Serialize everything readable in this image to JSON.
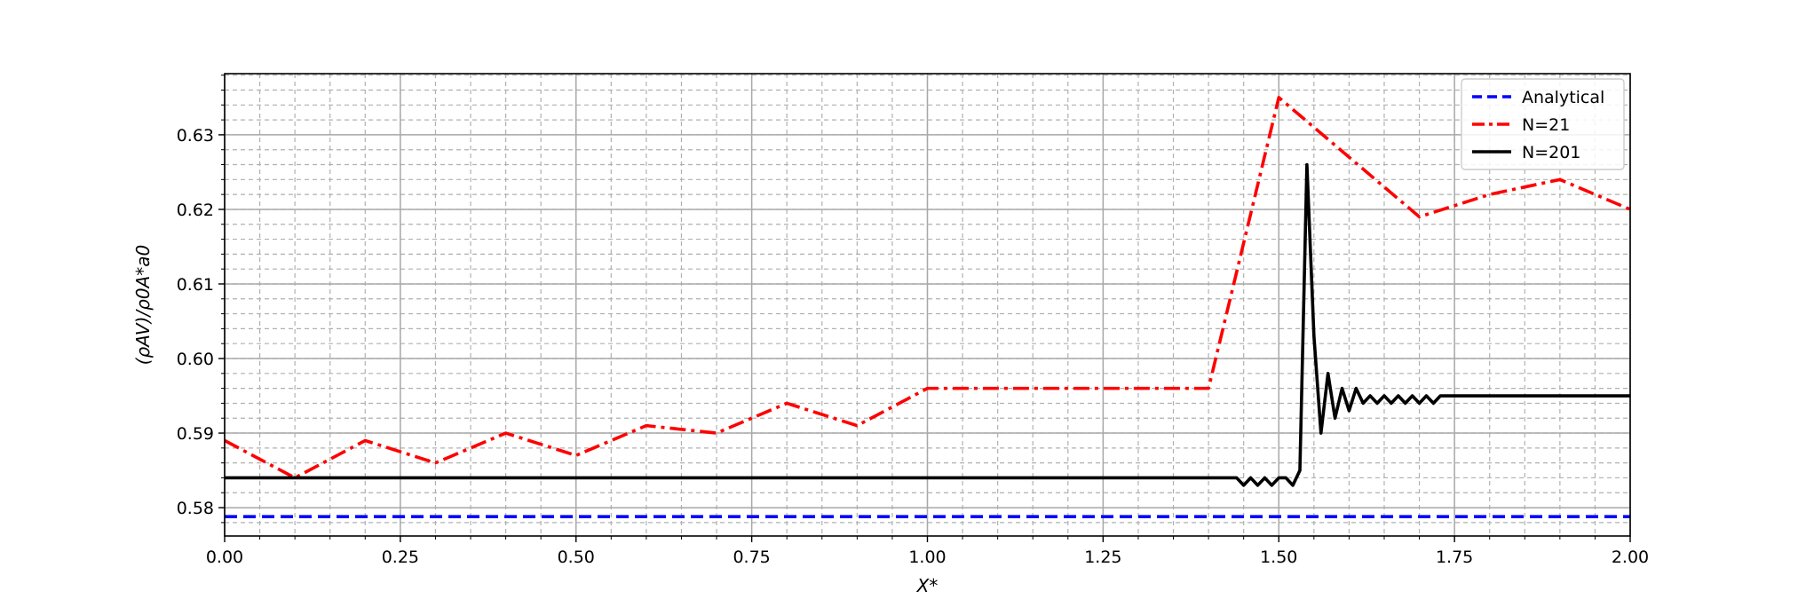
{
  "chart_data": {
    "type": "line",
    "xlabel": "X*",
    "ylabel": "(ρAV)/ρ0A*a0",
    "xlim": [
      0.0,
      2.0
    ],
    "ylim": [
      0.5762,
      0.6382
    ],
    "x_ticks": [
      "0.00",
      "0.25",
      "0.50",
      "0.75",
      "1.00",
      "1.25",
      "1.50",
      "1.75",
      "2.00"
    ],
    "x_tick_values": [
      0.0,
      0.25,
      0.5,
      0.75,
      1.0,
      1.25,
      1.5,
      1.75,
      2.0
    ],
    "y_ticks": [
      "0.58",
      "0.59",
      "0.60",
      "0.61",
      "0.62",
      "0.63"
    ],
    "y_tick_values": [
      0.58,
      0.59,
      0.6,
      0.61,
      0.62,
      0.63
    ],
    "grid": true,
    "minor_grid": true,
    "legend_position": "top-right",
    "series": [
      {
        "name": "Analytical",
        "color": "#0000ff",
        "style": "dashed",
        "x": [
          0.0,
          2.0
        ],
        "y": [
          0.5788,
          0.5788
        ]
      },
      {
        "name": "N=21",
        "color": "#ff0000",
        "style": "dashdot",
        "x": [
          0.0,
          0.1,
          0.2,
          0.3,
          0.4,
          0.5,
          0.6,
          0.7,
          0.8,
          0.9,
          1.0,
          1.1,
          1.2,
          1.3,
          1.4,
          1.5,
          1.6,
          1.7,
          1.8,
          1.9,
          2.0
        ],
        "y": [
          0.589,
          0.584,
          0.589,
          0.586,
          0.59,
          0.587,
          0.591,
          0.59,
          0.594,
          0.591,
          0.596,
          0.596,
          0.596,
          0.596,
          0.596,
          0.635,
          0.627,
          0.619,
          0.622,
          0.624,
          0.62
        ]
      },
      {
        "name": "N=201",
        "color": "#000000",
        "style": "solid",
        "x": [
          0.0,
          1.43,
          1.44,
          1.45,
          1.46,
          1.47,
          1.48,
          1.49,
          1.5,
          1.51,
          1.52,
          1.53,
          1.54,
          1.55,
          1.56,
          1.57,
          1.58,
          1.59,
          1.6,
          1.61,
          1.62,
          1.63,
          1.64,
          1.65,
          1.66,
          1.67,
          1.68,
          1.69,
          1.7,
          1.71,
          1.72,
          1.73,
          2.0
        ],
        "y": [
          0.584,
          0.584,
          0.584,
          0.583,
          0.584,
          0.583,
          0.584,
          0.583,
          0.584,
          0.584,
          0.583,
          0.585,
          0.626,
          0.603,
          0.59,
          0.598,
          0.592,
          0.596,
          0.593,
          0.596,
          0.594,
          0.595,
          0.594,
          0.595,
          0.594,
          0.595,
          0.594,
          0.595,
          0.594,
          0.595,
          0.594,
          0.595,
          0.595
        ]
      }
    ]
  }
}
